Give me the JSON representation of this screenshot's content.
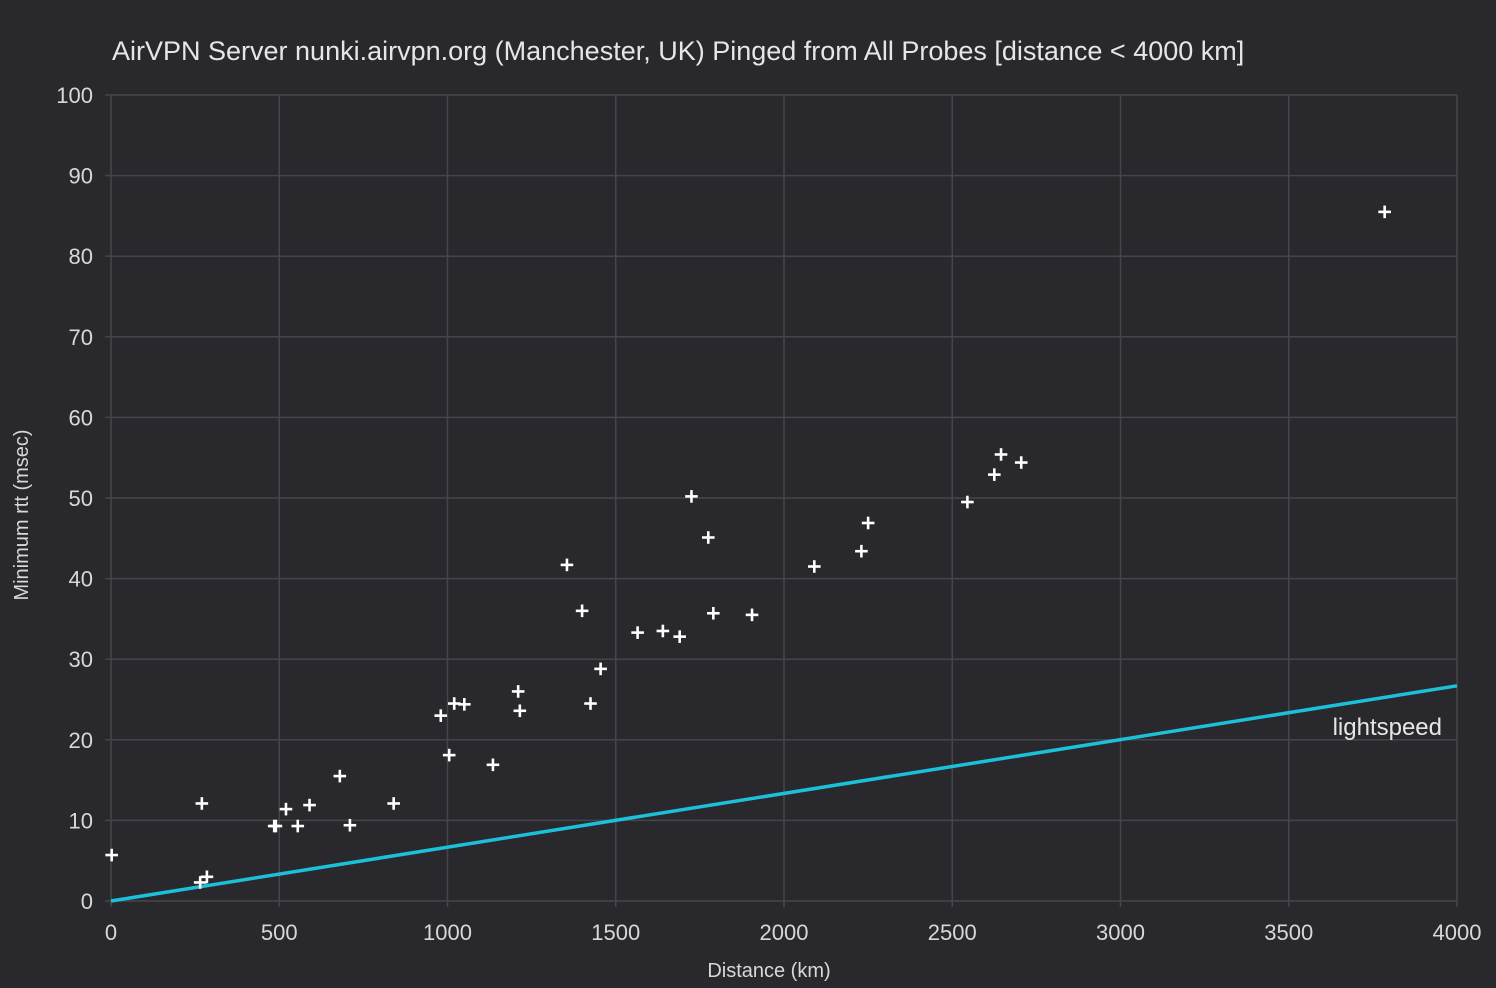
{
  "chart_data": {
    "type": "scatter",
    "title": "AirVPN Server nunki.airvpn.org (Manchester, UK) Pinged from All Probes [distance < 4000 km]",
    "xlabel": "Distance (km)",
    "ylabel": "Minimum rtt (msec)",
    "xlim": [
      0,
      4000
    ],
    "ylim": [
      0,
      100
    ],
    "xticks": [
      "0",
      "500",
      "1000",
      "1500",
      "2000",
      "2500",
      "3000",
      "3500",
      "4000"
    ],
    "yticks": [
      "0",
      "10",
      "20",
      "30",
      "40",
      "50",
      "60",
      "70",
      "80",
      "90",
      "100"
    ],
    "grid": true,
    "legend": "none",
    "colors": {
      "background": "#29282d",
      "grid": "#45454b",
      "points": "#ffffff",
      "lightspeed": "#1cc0d8"
    },
    "series": [
      {
        "x": [
          2,
          265,
          270,
          285,
          485,
          490,
          520,
          555,
          590,
          680,
          710,
          840,
          980,
          1005,
          1020,
          1050,
          1135,
          1210,
          1215,
          1355,
          1400,
          1425,
          1455,
          1565,
          1640,
          1690,
          1725,
          1775,
          1790,
          1905,
          2090,
          2230,
          2250,
          2545,
          2625,
          2645,
          2705,
          3785
        ],
        "y": [
          5.7,
          2.3,
          12.1,
          3,
          9.3,
          9.3,
          11.4,
          9.3,
          11.9,
          15.5,
          9.4,
          12.1,
          23,
          18.1,
          24.5,
          24.4,
          16.9,
          26,
          23.6,
          41.7,
          36,
          24.5,
          28.8,
          33.3,
          33.5,
          32.8,
          50.2,
          45.1,
          35.7,
          35.5,
          41.5,
          43.4,
          46.9,
          49.5,
          52.9,
          55.4,
          54.4,
          85.5
        ]
      },
      {
        "name": "lightspeed",
        "x": [
          0,
          4000
        ],
        "y": [
          0,
          26.7
        ]
      }
    ]
  }
}
